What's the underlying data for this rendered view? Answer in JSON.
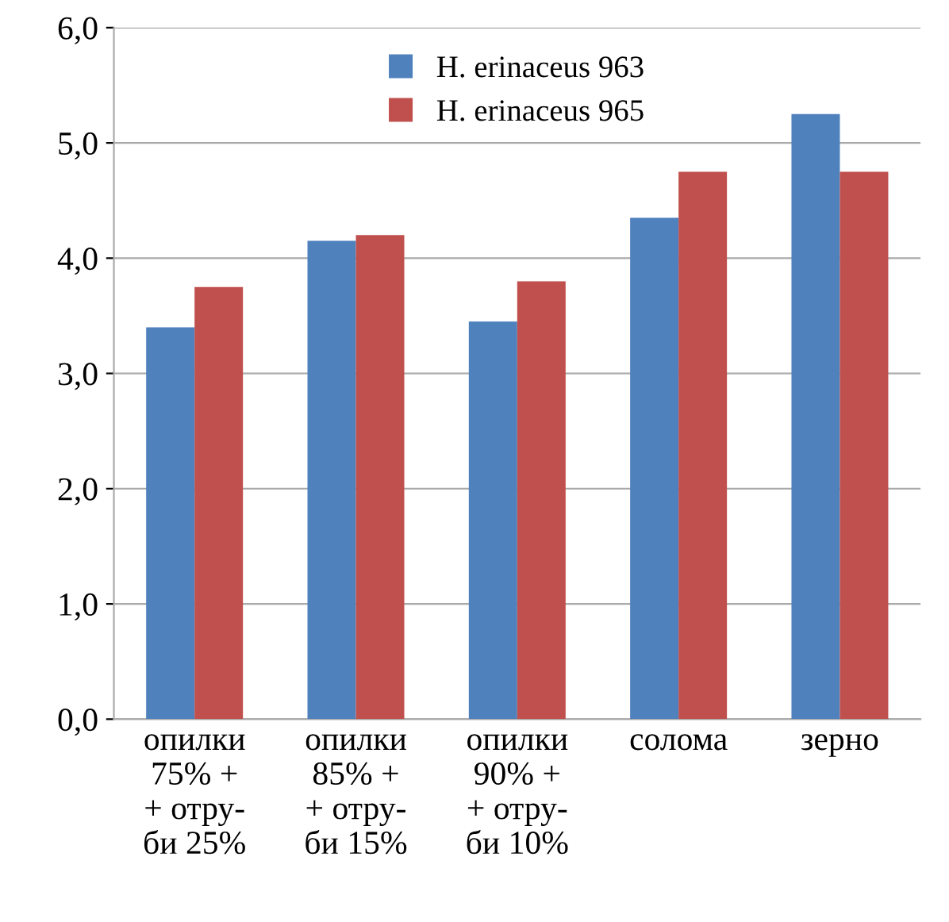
{
  "chart_data": {
    "type": "bar",
    "categories": [
      "опилки\n75% +\n+ отру-\nби 25%",
      "опилки\n85% +\n+ отру-\nби 15%",
      "опилки\n90% +\n+ отру-\nби 10%",
      "солома",
      "зерно"
    ],
    "series": [
      {
        "name": "H. erinaceus 963",
        "color": "#4f81bd",
        "values": [
          3.4,
          4.15,
          3.45,
          4.35,
          5.25
        ]
      },
      {
        "name": "H. erinaceus 965",
        "color": "#c0504d",
        "values": [
          3.75,
          4.2,
          3.8,
          4.75,
          4.75
        ]
      }
    ],
    "ylim": [
      0,
      6
    ],
    "yticks": [
      {
        "value": 0,
        "label": "0,0"
      },
      {
        "value": 1,
        "label": "1,0"
      },
      {
        "value": 2,
        "label": "2,0"
      },
      {
        "value": 3,
        "label": "3,0"
      },
      {
        "value": 4,
        "label": "4,0"
      },
      {
        "value": 5,
        "label": "5,0"
      },
      {
        "value": 6,
        "label": "6,0"
      }
    ],
    "grid": "y",
    "legend": "top"
  }
}
